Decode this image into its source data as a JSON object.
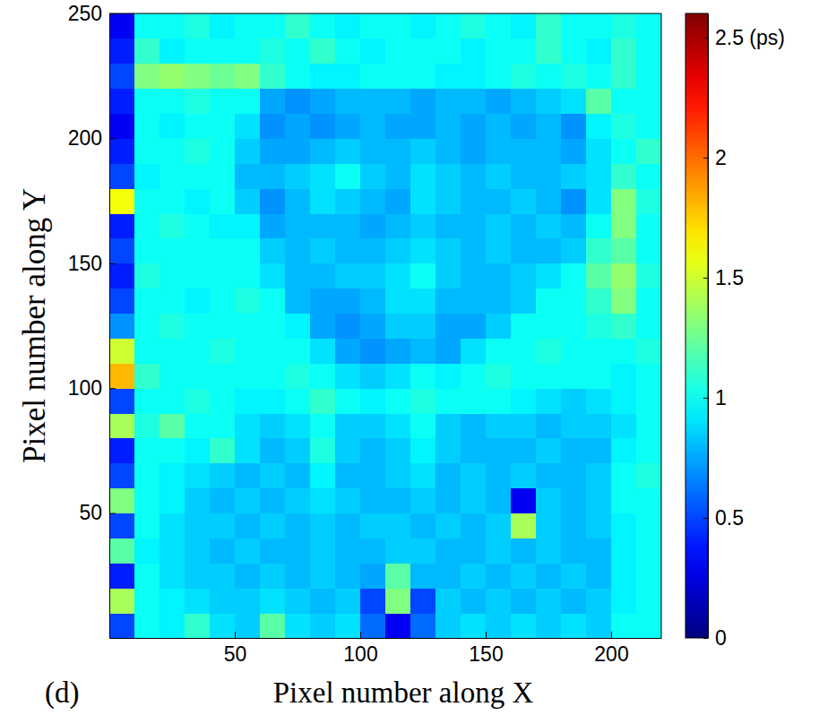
{
  "chart_data": {
    "type": "heatmap",
    "panel_label": "(d)",
    "x_label": "Pixel number along X",
    "y_label": "Pixel number along Y",
    "xlim": [
      0,
      220
    ],
    "ylim": [
      0,
      250
    ],
    "xticks": [
      50,
      100,
      150,
      200
    ],
    "yticks": [
      50,
      100,
      150,
      200,
      250
    ],
    "x": [
      5,
      15,
      25,
      35,
      45,
      55,
      65,
      75,
      85,
      95,
      105,
      115,
      125,
      135,
      145,
      155,
      165,
      175,
      185,
      195,
      205,
      215
    ],
    "y": [
      5,
      15,
      25,
      35,
      45,
      55,
      65,
      75,
      85,
      95,
      105,
      115,
      125,
      135,
      145,
      155,
      165,
      175,
      185,
      195,
      205,
      215,
      225,
      235,
      245
    ],
    "values": [
      [
        0.5,
        1.0,
        0.95,
        1.1,
        0.9,
        0.85,
        1.2,
        0.9,
        0.85,
        0.9,
        0.6,
        0.3,
        0.6,
        0.85,
        0.9,
        0.85,
        0.9,
        0.85,
        0.9,
        0.85,
        1.0,
        1.0
      ],
      [
        1.4,
        1.0,
        0.95,
        0.9,
        0.85,
        0.85,
        0.9,
        0.85,
        0.8,
        0.85,
        0.5,
        1.3,
        0.5,
        0.85,
        0.8,
        0.85,
        0.8,
        0.85,
        0.8,
        0.85,
        0.95,
        1.0
      ],
      [
        0.4,
        1.0,
        0.9,
        0.85,
        0.85,
        0.8,
        0.85,
        0.8,
        0.85,
        0.8,
        0.75,
        1.2,
        0.8,
        0.8,
        0.85,
        0.8,
        0.85,
        0.8,
        0.85,
        0.8,
        0.95,
        1.0
      ],
      [
        1.2,
        0.95,
        0.9,
        0.85,
        0.8,
        0.85,
        0.8,
        0.8,
        0.85,
        0.8,
        0.8,
        0.85,
        0.85,
        0.8,
        0.8,
        0.85,
        0.8,
        0.85,
        0.8,
        0.8,
        0.95,
        1.0
      ],
      [
        0.5,
        1.0,
        0.9,
        0.85,
        0.85,
        0.8,
        0.85,
        0.8,
        0.85,
        0.8,
        0.85,
        0.85,
        0.8,
        0.85,
        0.8,
        0.85,
        1.4,
        0.85,
        0.8,
        0.85,
        0.95,
        1.0
      ],
      [
        1.3,
        1.0,
        0.95,
        0.85,
        0.8,
        0.85,
        0.8,
        0.85,
        0.9,
        0.85,
        0.8,
        0.8,
        0.85,
        0.8,
        0.85,
        0.8,
        0.3,
        0.85,
        0.8,
        0.85,
        1.0,
        1.0
      ],
      [
        0.5,
        1.0,
        0.95,
        0.9,
        0.85,
        0.8,
        0.85,
        0.8,
        0.95,
        0.8,
        0.8,
        0.85,
        0.9,
        0.8,
        0.85,
        0.8,
        0.85,
        0.8,
        0.8,
        0.85,
        1.0,
        1.05
      ],
      [
        0.4,
        1.0,
        1.0,
        0.95,
        1.1,
        0.9,
        0.8,
        0.85,
        1.05,
        0.85,
        0.8,
        0.85,
        0.95,
        0.85,
        0.8,
        0.8,
        0.8,
        0.85,
        0.8,
        0.8,
        0.95,
        1.0
      ],
      [
        1.4,
        1.05,
        1.2,
        1.0,
        1.0,
        0.9,
        0.85,
        0.9,
        1.0,
        0.85,
        0.85,
        0.9,
        1.0,
        0.85,
        0.8,
        0.85,
        0.85,
        0.8,
        0.85,
        0.85,
        0.9,
        1.0
      ],
      [
        0.5,
        1.0,
        1.0,
        1.05,
        1.0,
        0.95,
        0.95,
        1.0,
        1.1,
        1.0,
        0.95,
        1.0,
        1.05,
        1.0,
        1.0,
        1.0,
        0.95,
        0.9,
        0.85,
        0.9,
        0.95,
        1.0
      ],
      [
        1.8,
        1.1,
        1.0,
        1.0,
        1.0,
        1.0,
        1.0,
        1.05,
        1.0,
        0.9,
        0.85,
        0.9,
        1.0,
        0.95,
        1.0,
        1.05,
        1.0,
        1.0,
        1.0,
        1.0,
        0.95,
        1.0
      ],
      [
        1.5,
        1.0,
        1.0,
        1.0,
        1.05,
        1.0,
        1.0,
        1.0,
        0.9,
        0.75,
        0.7,
        0.75,
        0.8,
        0.75,
        0.9,
        1.0,
        1.0,
        1.05,
        1.0,
        1.0,
        1.0,
        1.05
      ],
      [
        0.7,
        1.0,
        1.05,
        1.0,
        1.0,
        1.0,
        1.0,
        0.95,
        0.75,
        0.7,
        0.75,
        0.85,
        0.85,
        0.75,
        0.75,
        0.85,
        1.0,
        1.0,
        1.0,
        1.05,
        1.1,
        1.0
      ],
      [
        0.5,
        1.0,
        1.0,
        0.95,
        1.0,
        1.05,
        1.0,
        0.8,
        0.75,
        0.75,
        0.8,
        0.9,
        0.9,
        0.8,
        0.8,
        0.8,
        0.85,
        1.0,
        1.0,
        1.1,
        1.3,
        1.0
      ],
      [
        0.4,
        1.05,
        1.0,
        1.0,
        1.0,
        1.0,
        0.9,
        0.8,
        0.8,
        0.85,
        0.85,
        0.9,
        1.0,
        0.85,
        0.8,
        0.8,
        0.85,
        0.9,
        1.0,
        1.2,
        1.35,
        1.05
      ],
      [
        0.5,
        1.0,
        1.0,
        1.0,
        1.0,
        1.0,
        0.85,
        0.8,
        0.85,
        0.8,
        0.8,
        0.85,
        0.9,
        0.85,
        0.8,
        0.85,
        0.8,
        0.8,
        0.85,
        1.1,
        1.2,
        1.0
      ],
      [
        0.4,
        1.0,
        1.05,
        1.0,
        0.95,
        0.95,
        0.75,
        0.8,
        0.8,
        0.8,
        0.75,
        0.8,
        0.85,
        0.8,
        0.8,
        0.85,
        0.8,
        0.85,
        0.8,
        1.0,
        1.3,
        1.0
      ],
      [
        1.6,
        1.0,
        1.0,
        0.95,
        1.0,
        0.85,
        0.7,
        0.8,
        0.9,
        0.85,
        0.8,
        0.75,
        0.9,
        0.85,
        0.8,
        0.8,
        0.85,
        0.8,
        0.7,
        0.9,
        1.3,
        1.05
      ],
      [
        0.5,
        0.95,
        1.0,
        1.0,
        1.0,
        0.8,
        0.8,
        0.85,
        0.9,
        1.0,
        0.85,
        0.8,
        0.9,
        0.85,
        0.8,
        0.85,
        0.8,
        0.8,
        0.85,
        0.9,
        1.1,
        1.0
      ],
      [
        0.4,
        1.0,
        1.0,
        1.05,
        1.0,
        0.85,
        0.75,
        0.75,
        0.8,
        0.85,
        0.8,
        0.8,
        0.85,
        0.8,
        0.75,
        0.8,
        0.8,
        0.8,
        0.75,
        0.9,
        1.0,
        1.1
      ],
      [
        0.3,
        1.0,
        0.95,
        1.0,
        1.0,
        0.9,
        0.7,
        0.75,
        0.7,
        0.75,
        0.8,
        0.75,
        0.75,
        0.8,
        0.75,
        0.8,
        0.75,
        0.8,
        0.7,
        0.95,
        1.05,
        1.0
      ],
      [
        0.4,
        1.0,
        1.0,
        1.05,
        1.0,
        1.0,
        0.75,
        0.7,
        0.75,
        0.8,
        0.8,
        0.8,
        0.75,
        0.8,
        0.8,
        0.75,
        0.8,
        0.85,
        0.9,
        1.2,
        1.0,
        1.0
      ],
      [
        0.5,
        1.3,
        1.35,
        1.3,
        1.25,
        1.3,
        1.1,
        1.0,
        0.95,
        0.95,
        1.0,
        1.0,
        1.0,
        0.95,
        0.95,
        1.0,
        1.05,
        1.0,
        1.05,
        1.0,
        1.1,
        1.0
      ],
      [
        0.4,
        1.1,
        0.95,
        1.0,
        1.0,
        1.0,
        1.05,
        1.0,
        1.1,
        1.0,
        0.95,
        1.0,
        1.0,
        1.0,
        0.95,
        1.0,
        1.0,
        1.1,
        1.0,
        0.95,
        1.1,
        1.0
      ],
      [
        0.3,
        1.0,
        1.0,
        1.05,
        0.95,
        1.0,
        1.0,
        1.1,
        1.0,
        0.95,
        1.0,
        1.0,
        0.95,
        1.0,
        1.05,
        1.0,
        0.95,
        1.1,
        1.0,
        1.0,
        1.05,
        1.0
      ]
    ],
    "colorbar": {
      "range": [
        0,
        2.6
      ],
      "ticks": [
        0,
        0.5,
        1,
        1.5,
        2,
        {
          "value": 2.5,
          "label": "2.5 (ps)"
        }
      ]
    }
  }
}
